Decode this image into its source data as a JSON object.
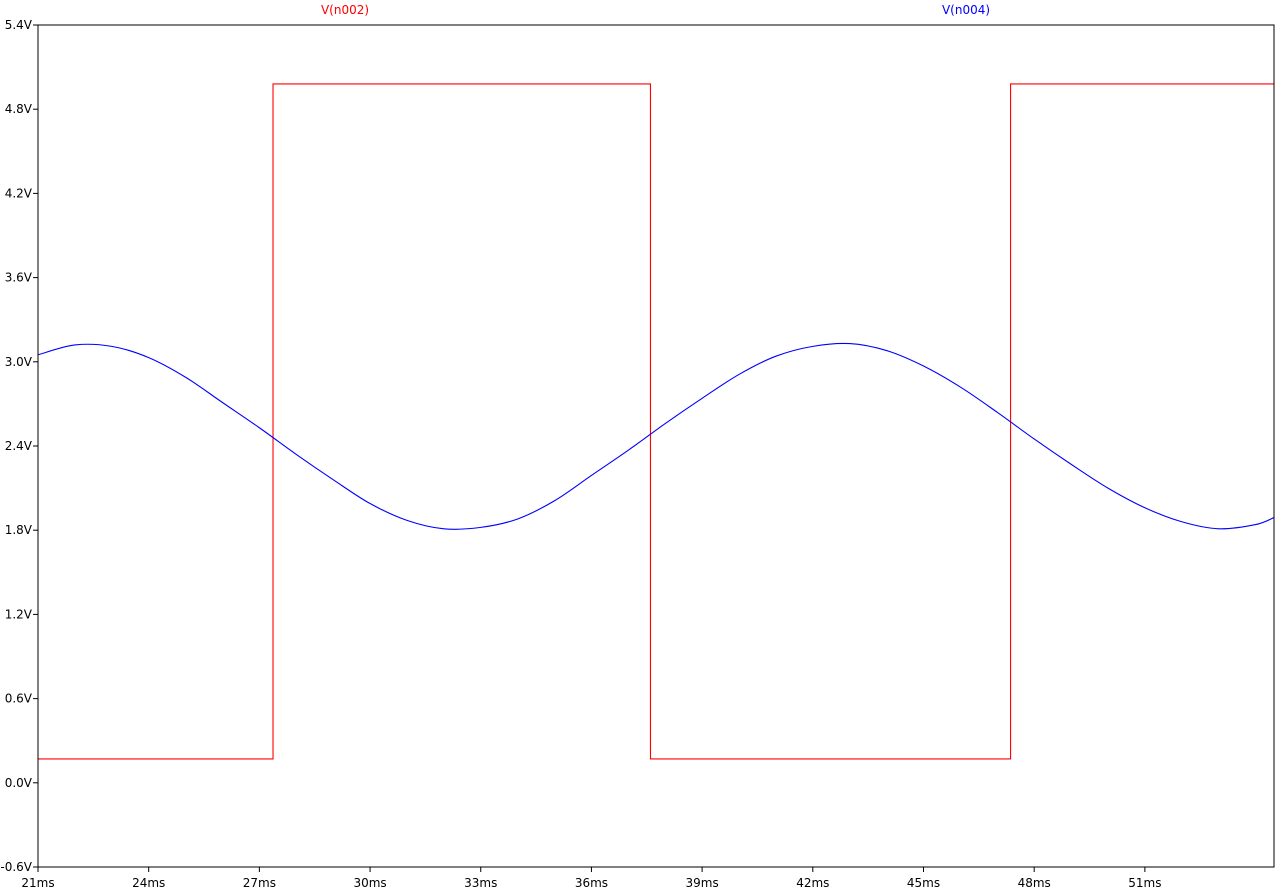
{
  "chart_data": {
    "type": "line",
    "title": "",
    "xlabel": "",
    "ylabel": "",
    "x_unit": "ms",
    "y_unit": "V",
    "xlim": [
      21,
      54.5
    ],
    "ylim": [
      -0.6,
      5.4
    ],
    "grid": false,
    "x_ticks": [
      {
        "value": 21,
        "label": "21ms"
      },
      {
        "value": 24,
        "label": "24ms"
      },
      {
        "value": 27,
        "label": "27ms"
      },
      {
        "value": 30,
        "label": "30ms"
      },
      {
        "value": 33,
        "label": "33ms"
      },
      {
        "value": 36,
        "label": "36ms"
      },
      {
        "value": 39,
        "label": "39ms"
      },
      {
        "value": 42,
        "label": "42ms"
      },
      {
        "value": 45,
        "label": "45ms"
      },
      {
        "value": 48,
        "label": "48ms"
      },
      {
        "value": 51,
        "label": "51ms"
      }
    ],
    "y_ticks": [
      {
        "value": 5.4,
        "label": "5.4V"
      },
      {
        "value": 4.8,
        "label": "4.8V"
      },
      {
        "value": 4.2,
        "label": "4.2V"
      },
      {
        "value": 3.6,
        "label": "3.6V"
      },
      {
        "value": 3.0,
        "label": "3.0V"
      },
      {
        "value": 2.4,
        "label": "2.4V"
      },
      {
        "value": 1.8,
        "label": "1.8V"
      },
      {
        "value": 1.2,
        "label": "1.2V"
      },
      {
        "value": 0.6,
        "label": "0.6V"
      },
      {
        "value": 0.0,
        "label": "0.0V"
      },
      {
        "value": -0.6,
        "label": "-0.6V"
      }
    ],
    "series": [
      {
        "name": "V(n002)",
        "color": "#ff0000",
        "x": [
          21,
          27.37,
          27.37,
          37.6,
          37.6,
          47.36,
          47.36,
          54.5
        ],
        "y": [
          0.17,
          0.17,
          4.98,
          4.98,
          0.17,
          0.17,
          4.98,
          4.98
        ]
      },
      {
        "name": "V(n004)",
        "color": "#0000ff",
        "x": [
          21,
          22,
          23,
          24,
          25,
          26,
          27,
          28,
          29,
          30,
          31,
          32,
          33,
          34,
          35,
          36,
          37,
          38,
          39,
          40,
          41,
          42,
          43,
          44,
          45,
          46,
          47,
          48,
          49,
          50,
          51,
          52,
          53,
          54,
          54.5
        ],
        "y": [
          3.05,
          3.12,
          3.11,
          3.03,
          2.89,
          2.71,
          2.53,
          2.34,
          2.16,
          1.99,
          1.87,
          1.81,
          1.82,
          1.88,
          2.01,
          2.19,
          2.37,
          2.56,
          2.74,
          2.91,
          3.04,
          3.11,
          3.13,
          3.08,
          2.97,
          2.82,
          2.64,
          2.45,
          2.27,
          2.1,
          1.96,
          1.86,
          1.81,
          1.84,
          1.89
        ]
      }
    ]
  }
}
